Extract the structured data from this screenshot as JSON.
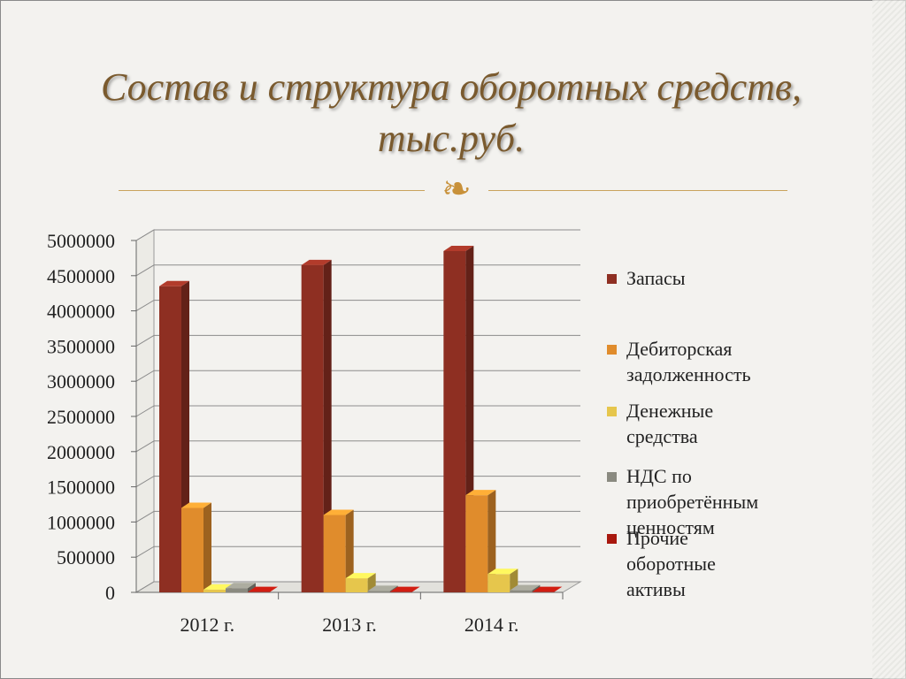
{
  "slide": {
    "title_line1": "Состав и структура оборотных средств,",
    "title_line2": "тыс.руб.",
    "ornament_icon": "scroll-ornament-icon"
  },
  "chart_data": {
    "type": "bar",
    "title": "Состав и структура оборотных средств, тыс.руб.",
    "categories": [
      "2012 г.",
      "2013 г.",
      "2014 г."
    ],
    "ylim": [
      0,
      5000000
    ],
    "yticks": [
      "0",
      "500000",
      "1000000",
      "1500000",
      "2000000",
      "2500000",
      "3000000",
      "3500000",
      "4000000",
      "4500000",
      "5000000"
    ],
    "grid": true,
    "legend_position": "right",
    "series": [
      {
        "name": "Запасы",
        "color": "#8e2f22",
        "values": [
          4350000,
          4650000,
          4850000
        ]
      },
      {
        "name": "Дебиторская задолженность",
        "color": "#e08c2c",
        "values": [
          1200000,
          1100000,
          1380000
        ]
      },
      {
        "name": "Денежные средства",
        "color": "#e6c64c",
        "values": [
          40000,
          200000,
          260000
        ]
      },
      {
        "name": "НДС по приобретённым ценностям",
        "color": "#8a8a80",
        "values": [
          60000,
          20000,
          30000
        ]
      },
      {
        "name": "Прочие оборотные активы",
        "color": "#a8180e",
        "values": [
          5000,
          5000,
          5000
        ]
      }
    ]
  }
}
